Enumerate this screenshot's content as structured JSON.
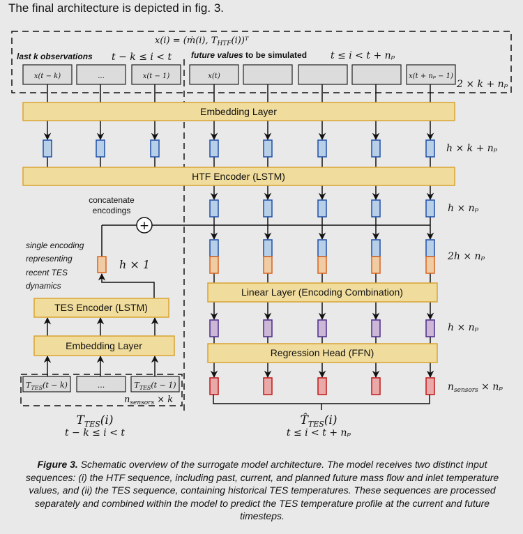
{
  "intro_text": "The final architecture is depicted in fig. 3.",
  "htf_input": {
    "definition": "x(i) = (ṁ(i), T",
    "definition_sub": "HTF",
    "definition_end": "(i))ᵀ",
    "past_label_bold": "last k observations",
    "past_range": "t − k ≤ i < t",
    "future_label_bold": "future values",
    "future_label_rest": " to be simulated",
    "future_range": "t ≤ i < t + nₚ",
    "boxes": [
      "x(t − k)",
      "...",
      "x(t − 1)",
      "x(t)",
      "",
      "",
      "",
      "x(t + nₚ − 1)"
    ],
    "dim": "2 × k + nₚ"
  },
  "layers": {
    "embedding_top": "Embedding Layer",
    "htf_encoder": "HTF Encoder (LSTM)",
    "linear": "Linear Layer (Encoding Combination)",
    "regression": "Regression Head (FFN)",
    "tes_encoder": "TES Encoder (LSTM)",
    "embedding_bottom": "Embedding Layer"
  },
  "dims": {
    "emb": "h × k + nₚ",
    "htf": "h × nₚ",
    "concat": "2h × nₚ",
    "linear": "h × nₚ",
    "out_base": "n",
    "out_sub": "sensors",
    "out_rest": " × nₚ",
    "tes": "h × 1"
  },
  "annotations": {
    "concat_line1": "concatenate",
    "concat_line2": "encodings",
    "single": [
      "single encoding",
      "representing",
      "recent TES",
      "dynamics"
    ]
  },
  "tes_input": {
    "boxes": [
      {
        "base": "T",
        "sub": "TES",
        "rest": "(t − k)"
      },
      {
        "base": "...",
        "sub": "",
        "rest": ""
      },
      {
        "base": "T",
        "sub": "TES",
        "rest": "(t − 1)"
      }
    ],
    "dim_base": "n",
    "dim_sub": "sensors",
    "dim_rest": " × k",
    "label_base": "T",
    "label_sub": "TES",
    "label_rest": "(i)",
    "label_range": "t − k ≤ i < t"
  },
  "output": {
    "label_base": "T̂",
    "label_sub": "TES",
    "label_rest": "(i)",
    "label_range": "t ≤ i < t + nₚ"
  },
  "colors": {
    "layer_fill": "#f0dc9c",
    "blue": "#b8cfe8",
    "orange": "#f0cca4",
    "purple": "#cdb7d6",
    "red": "#eaa9a9"
  },
  "caption": {
    "label": "Figure 3.",
    "text": " Schematic overview of the surrogate model architecture. The model receives two distinct input sequences: (i) the HTF sequence, including past, current, and planned future mass flow and inlet temperature values, and (ii) the TES sequence, containing historical TES temperatures. These sequences are processed separately and combined within the model to predict the TES temperature profile at the current and future timesteps."
  }
}
